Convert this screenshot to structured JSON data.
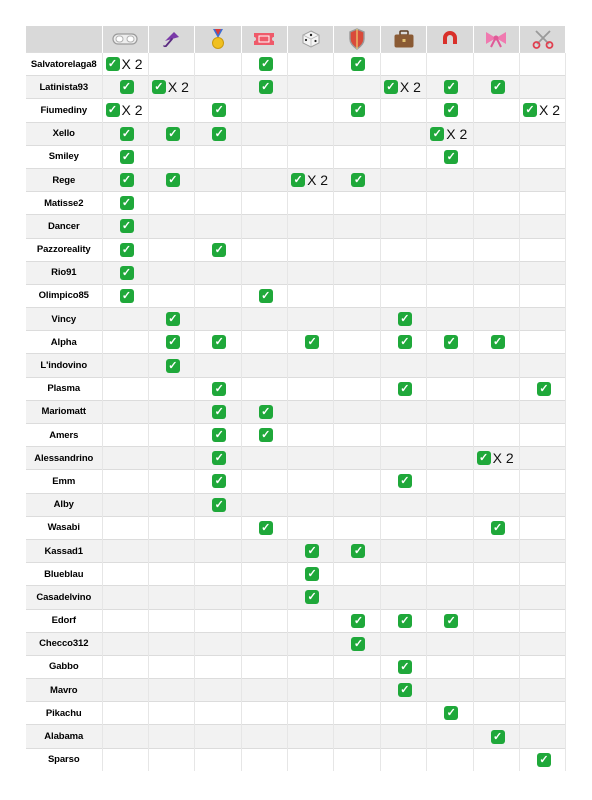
{
  "columns": [
    {
      "icon": "goggles-icon"
    },
    {
      "icon": "umbrella-icon"
    },
    {
      "icon": "medal-icon"
    },
    {
      "icon": "ticket-icon"
    },
    {
      "icon": "dice-icon"
    },
    {
      "icon": "shield-icon"
    },
    {
      "icon": "briefcase-icon"
    },
    {
      "icon": "magnet-icon"
    },
    {
      "icon": "ribbon-icon"
    },
    {
      "icon": "scissors-icon"
    }
  ],
  "check_symbol": "✓",
  "multiplier_text": "X 2",
  "colors": {
    "header_bg": "#d9d9d9",
    "check_green": "#1fa83a",
    "stripe": "#f2f2f2"
  },
  "rows": [
    {
      "name": "Salvatorelaga8",
      "cells": [
        2,
        0,
        0,
        1,
        0,
        1,
        0,
        0,
        0,
        0
      ]
    },
    {
      "name": "Latinista93",
      "cells": [
        1,
        2,
        0,
        1,
        0,
        0,
        2,
        1,
        1,
        0
      ]
    },
    {
      "name": "Fiumediny",
      "cells": [
        2,
        0,
        1,
        0,
        0,
        1,
        0,
        1,
        0,
        2
      ]
    },
    {
      "name": "Xello",
      "cells": [
        1,
        1,
        1,
        0,
        0,
        0,
        0,
        2,
        0,
        0
      ]
    },
    {
      "name": "Smiley",
      "cells": [
        1,
        0,
        0,
        0,
        0,
        0,
        0,
        1,
        0,
        0
      ]
    },
    {
      "name": "Rege",
      "cells": [
        1,
        1,
        0,
        0,
        2,
        1,
        0,
        0,
        0,
        0
      ]
    },
    {
      "name": "Matisse2",
      "cells": [
        1,
        0,
        0,
        0,
        0,
        0,
        0,
        0,
        0,
        0
      ]
    },
    {
      "name": "Dancer",
      "cells": [
        1,
        0,
        0,
        0,
        0,
        0,
        0,
        0,
        0,
        0
      ]
    },
    {
      "name": "Pazzoreality",
      "cells": [
        1,
        0,
        1,
        0,
        0,
        0,
        0,
        0,
        0,
        0
      ]
    },
    {
      "name": "Rio91",
      "cells": [
        1,
        0,
        0,
        0,
        0,
        0,
        0,
        0,
        0,
        0
      ]
    },
    {
      "name": "Olimpico85",
      "cells": [
        1,
        0,
        0,
        1,
        0,
        0,
        0,
        0,
        0,
        0
      ]
    },
    {
      "name": "Vincy",
      "cells": [
        0,
        1,
        0,
        0,
        0,
        0,
        1,
        0,
        0,
        0
      ]
    },
    {
      "name": "Alpha",
      "cells": [
        0,
        1,
        1,
        0,
        1,
        0,
        1,
        1,
        1,
        0
      ]
    },
    {
      "name": "L'indovino",
      "cells": [
        0,
        1,
        0,
        0,
        0,
        0,
        0,
        0,
        0,
        0
      ]
    },
    {
      "name": "Plasma",
      "cells": [
        0,
        0,
        1,
        0,
        0,
        0,
        1,
        0,
        0,
        1
      ]
    },
    {
      "name": "Mariomatt",
      "cells": [
        0,
        0,
        1,
        1,
        0,
        0,
        0,
        0,
        0,
        0
      ]
    },
    {
      "name": "Amers",
      "cells": [
        0,
        0,
        1,
        1,
        0,
        0,
        0,
        0,
        0,
        0
      ]
    },
    {
      "name": "Alessandrino",
      "cells": [
        0,
        0,
        1,
        0,
        0,
        0,
        0,
        0,
        2,
        0
      ]
    },
    {
      "name": "Emm",
      "cells": [
        0,
        0,
        1,
        0,
        0,
        0,
        1,
        0,
        0,
        0
      ]
    },
    {
      "name": "Alby",
      "cells": [
        0,
        0,
        1,
        0,
        0,
        0,
        0,
        0,
        0,
        0
      ]
    },
    {
      "name": "Wasabi",
      "cells": [
        0,
        0,
        0,
        1,
        0,
        0,
        0,
        0,
        1,
        0
      ]
    },
    {
      "name": "Kassad1",
      "cells": [
        0,
        0,
        0,
        0,
        1,
        1,
        0,
        0,
        0,
        0
      ]
    },
    {
      "name": "Blueblau",
      "cells": [
        0,
        0,
        0,
        0,
        1,
        0,
        0,
        0,
        0,
        0
      ]
    },
    {
      "name": "Casadelvino",
      "cells": [
        0,
        0,
        0,
        0,
        1,
        0,
        0,
        0,
        0,
        0
      ]
    },
    {
      "name": "Edorf",
      "cells": [
        0,
        0,
        0,
        0,
        0,
        1,
        1,
        1,
        0,
        0
      ]
    },
    {
      "name": "Checco312",
      "cells": [
        0,
        0,
        0,
        0,
        0,
        1,
        0,
        0,
        0,
        0
      ]
    },
    {
      "name": "Gabbo",
      "cells": [
        0,
        0,
        0,
        0,
        0,
        0,
        1,
        0,
        0,
        0
      ]
    },
    {
      "name": "Mavro",
      "cells": [
        0,
        0,
        0,
        0,
        0,
        0,
        1,
        0,
        0,
        0
      ]
    },
    {
      "name": "Pikachu",
      "cells": [
        0,
        0,
        0,
        0,
        0,
        0,
        0,
        1,
        0,
        0
      ]
    },
    {
      "name": "Alabama",
      "cells": [
        0,
        0,
        0,
        0,
        0,
        0,
        0,
        0,
        1,
        0
      ]
    },
    {
      "name": "Sparso",
      "cells": [
        0,
        0,
        0,
        0,
        0,
        0,
        0,
        0,
        0,
        1
      ]
    }
  ]
}
